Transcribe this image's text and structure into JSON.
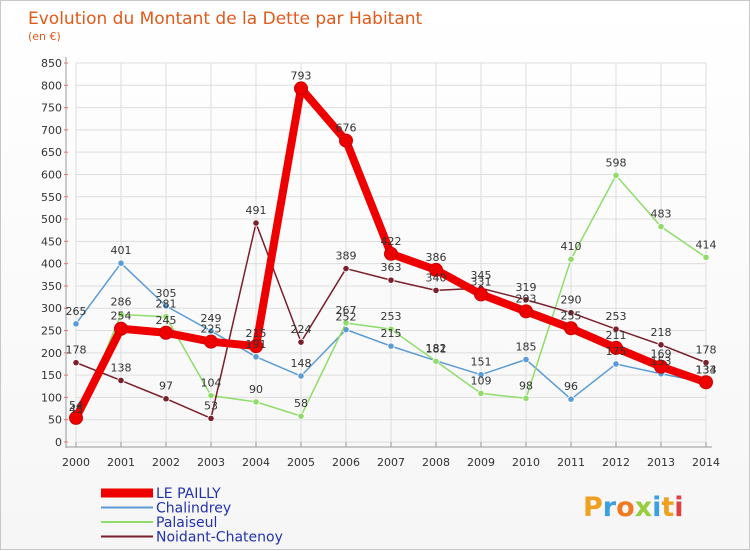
{
  "chart_data": {
    "type": "line",
    "title": "Evolution du Montant de la Dette par Habitant",
    "subtitle": "(en €)",
    "xlabel": "",
    "ylabel": "",
    "ylim": [
      0,
      850
    ],
    "y_ticks": [
      0,
      50,
      100,
      150,
      200,
      250,
      300,
      350,
      400,
      450,
      500,
      550,
      600,
      650,
      700,
      750,
      800,
      850
    ],
    "categories": [
      "2000",
      "2001",
      "2002",
      "2003",
      "2004",
      "2005",
      "2006",
      "2007",
      "2008",
      "2009",
      "2010",
      "2011",
      "2012",
      "2013",
      "2014"
    ],
    "grid": true,
    "legend_position": "bottom-left",
    "series": [
      {
        "name": "LE PAILLY",
        "color": "#ee0000",
        "values": [
          54,
          254,
          245,
          225,
          215,
          793,
          676,
          422,
          386,
          331,
          293,
          255,
          211,
          169,
          134
        ]
      },
      {
        "name": "Chalindrey",
        "color": "#5b9bd5",
        "values": [
          265,
          401,
          305,
          249,
          191,
          148,
          252,
          215,
          182,
          151,
          185,
          96,
          175,
          153,
          133
        ]
      },
      {
        "name": "Palaiseul",
        "color": "#8fdc6a",
        "values": [
          45,
          286,
          281,
          104,
          90,
          58,
          267,
          253,
          181,
          109,
          98,
          410,
          598,
          483,
          414
        ]
      },
      {
        "name": "Noidant-Chatenoy",
        "color": "#7a1f2b",
        "values": [
          178,
          138,
          97,
          53,
          491,
          224,
          389,
          363,
          340,
          345,
          319,
          290,
          253,
          218,
          178
        ]
      }
    ]
  },
  "brand": {
    "text": "Proxiti"
  }
}
